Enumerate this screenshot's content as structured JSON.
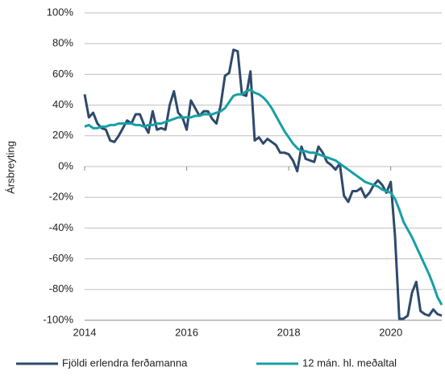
{
  "chart_data": {
    "type": "line",
    "y_label": "Ársbreyting",
    "x": [
      2014,
      2014.083,
      2014.167,
      2014.25,
      2014.333,
      2014.417,
      2014.5,
      2014.583,
      2014.667,
      2014.75,
      2014.833,
      2014.917,
      2015,
      2015.083,
      2015.167,
      2015.25,
      2015.333,
      2015.417,
      2015.5,
      2015.583,
      2015.667,
      2015.75,
      2015.833,
      2015.917,
      2016,
      2016.083,
      2016.167,
      2016.25,
      2016.333,
      2016.417,
      2016.5,
      2016.583,
      2016.667,
      2016.75,
      2016.833,
      2016.917,
      2017,
      2017.083,
      2017.167,
      2017.25,
      2017.333,
      2017.417,
      2017.5,
      2017.583,
      2017.667,
      2017.75,
      2017.833,
      2017.917,
      2018,
      2018.083,
      2018.167,
      2018.25,
      2018.333,
      2018.417,
      2018.5,
      2018.583,
      2018.667,
      2018.75,
      2018.833,
      2018.917,
      2019,
      2019.083,
      2019.167,
      2019.25,
      2019.333,
      2019.417,
      2019.5,
      2019.583,
      2019.667,
      2019.75,
      2019.833,
      2019.917,
      2020,
      2020.083,
      2020.167,
      2020.25,
      2020.333,
      2020.417,
      2020.5,
      2020.583,
      2020.667,
      2020.75,
      2020.833,
      2020.917,
      2021
    ],
    "series": [
      {
        "name": "Fjöldi erlendra ferðamanna",
        "color": "#2e4a6b",
        "values": [
          47,
          32,
          35,
          28,
          25,
          24,
          17,
          16,
          20,
          25,
          30,
          28,
          34,
          34,
          27,
          22,
          36,
          24,
          25,
          24,
          40,
          49,
          35,
          32,
          24,
          43,
          38,
          33,
          36,
          36,
          31,
          28,
          40,
          59,
          61,
          76,
          75,
          47,
          46,
          62,
          17,
          19,
          15,
          18,
          16,
          14,
          9,
          9,
          8,
          4,
          -3,
          13,
          5,
          4,
          3,
          13,
          9,
          3,
          1,
          -2,
          2,
          -19,
          -23,
          -16,
          -16,
          -14,
          -20,
          -17,
          -12,
          -9,
          -12,
          -17,
          -10,
          -45,
          -99,
          -99,
          -97,
          -82,
          -75,
          -94,
          -96,
          -97,
          -93,
          -96,
          -97
        ]
      },
      {
        "name": "12 mán. hl. meðaltal",
        "color": "#16a0a6",
        "values": [
          26,
          27,
          25,
          25,
          26,
          26,
          27,
          27,
          28,
          28,
          28,
          28,
          27,
          27,
          26,
          27,
          27,
          28,
          28,
          29,
          30,
          31,
          32,
          32,
          32,
          32,
          33,
          33,
          34,
          34,
          34,
          35,
          36,
          38,
          42,
          46,
          47,
          47,
          49,
          50,
          48,
          47,
          45,
          42,
          38,
          33,
          28,
          23,
          19,
          15,
          12,
          10,
          10,
          9,
          9,
          8,
          7,
          6,
          5,
          4,
          2,
          0,
          -2,
          -4,
          -6,
          -8,
          -10,
          -11,
          -12,
          -13,
          -15,
          -16,
          -17,
          -21,
          -28,
          -36,
          -41,
          -46,
          -52,
          -58,
          -64,
          -70,
          -77,
          -85,
          -90
        ]
      }
    ],
    "xlim": [
      2014,
      2021
    ],
    "xticks": [
      2014,
      2016,
      2018,
      2020
    ],
    "ylim": [
      -100,
      100
    ],
    "yticks": [
      {
        "value": -100,
        "label": "-100%"
      },
      {
        "value": -80,
        "label": "-80%"
      },
      {
        "value": -60,
        "label": "-60%"
      },
      {
        "value": -40,
        "label": "-40%"
      },
      {
        "value": -20,
        "label": "-20%"
      },
      {
        "value": 0,
        "label": "0%"
      },
      {
        "value": 20,
        "label": "20%"
      },
      {
        "value": 40,
        "label": "40%"
      },
      {
        "value": 60,
        "label": "60%"
      },
      {
        "value": 80,
        "label": "80%"
      },
      {
        "value": 100,
        "label": "100%"
      }
    ],
    "grid": true,
    "legend": "bottom"
  }
}
